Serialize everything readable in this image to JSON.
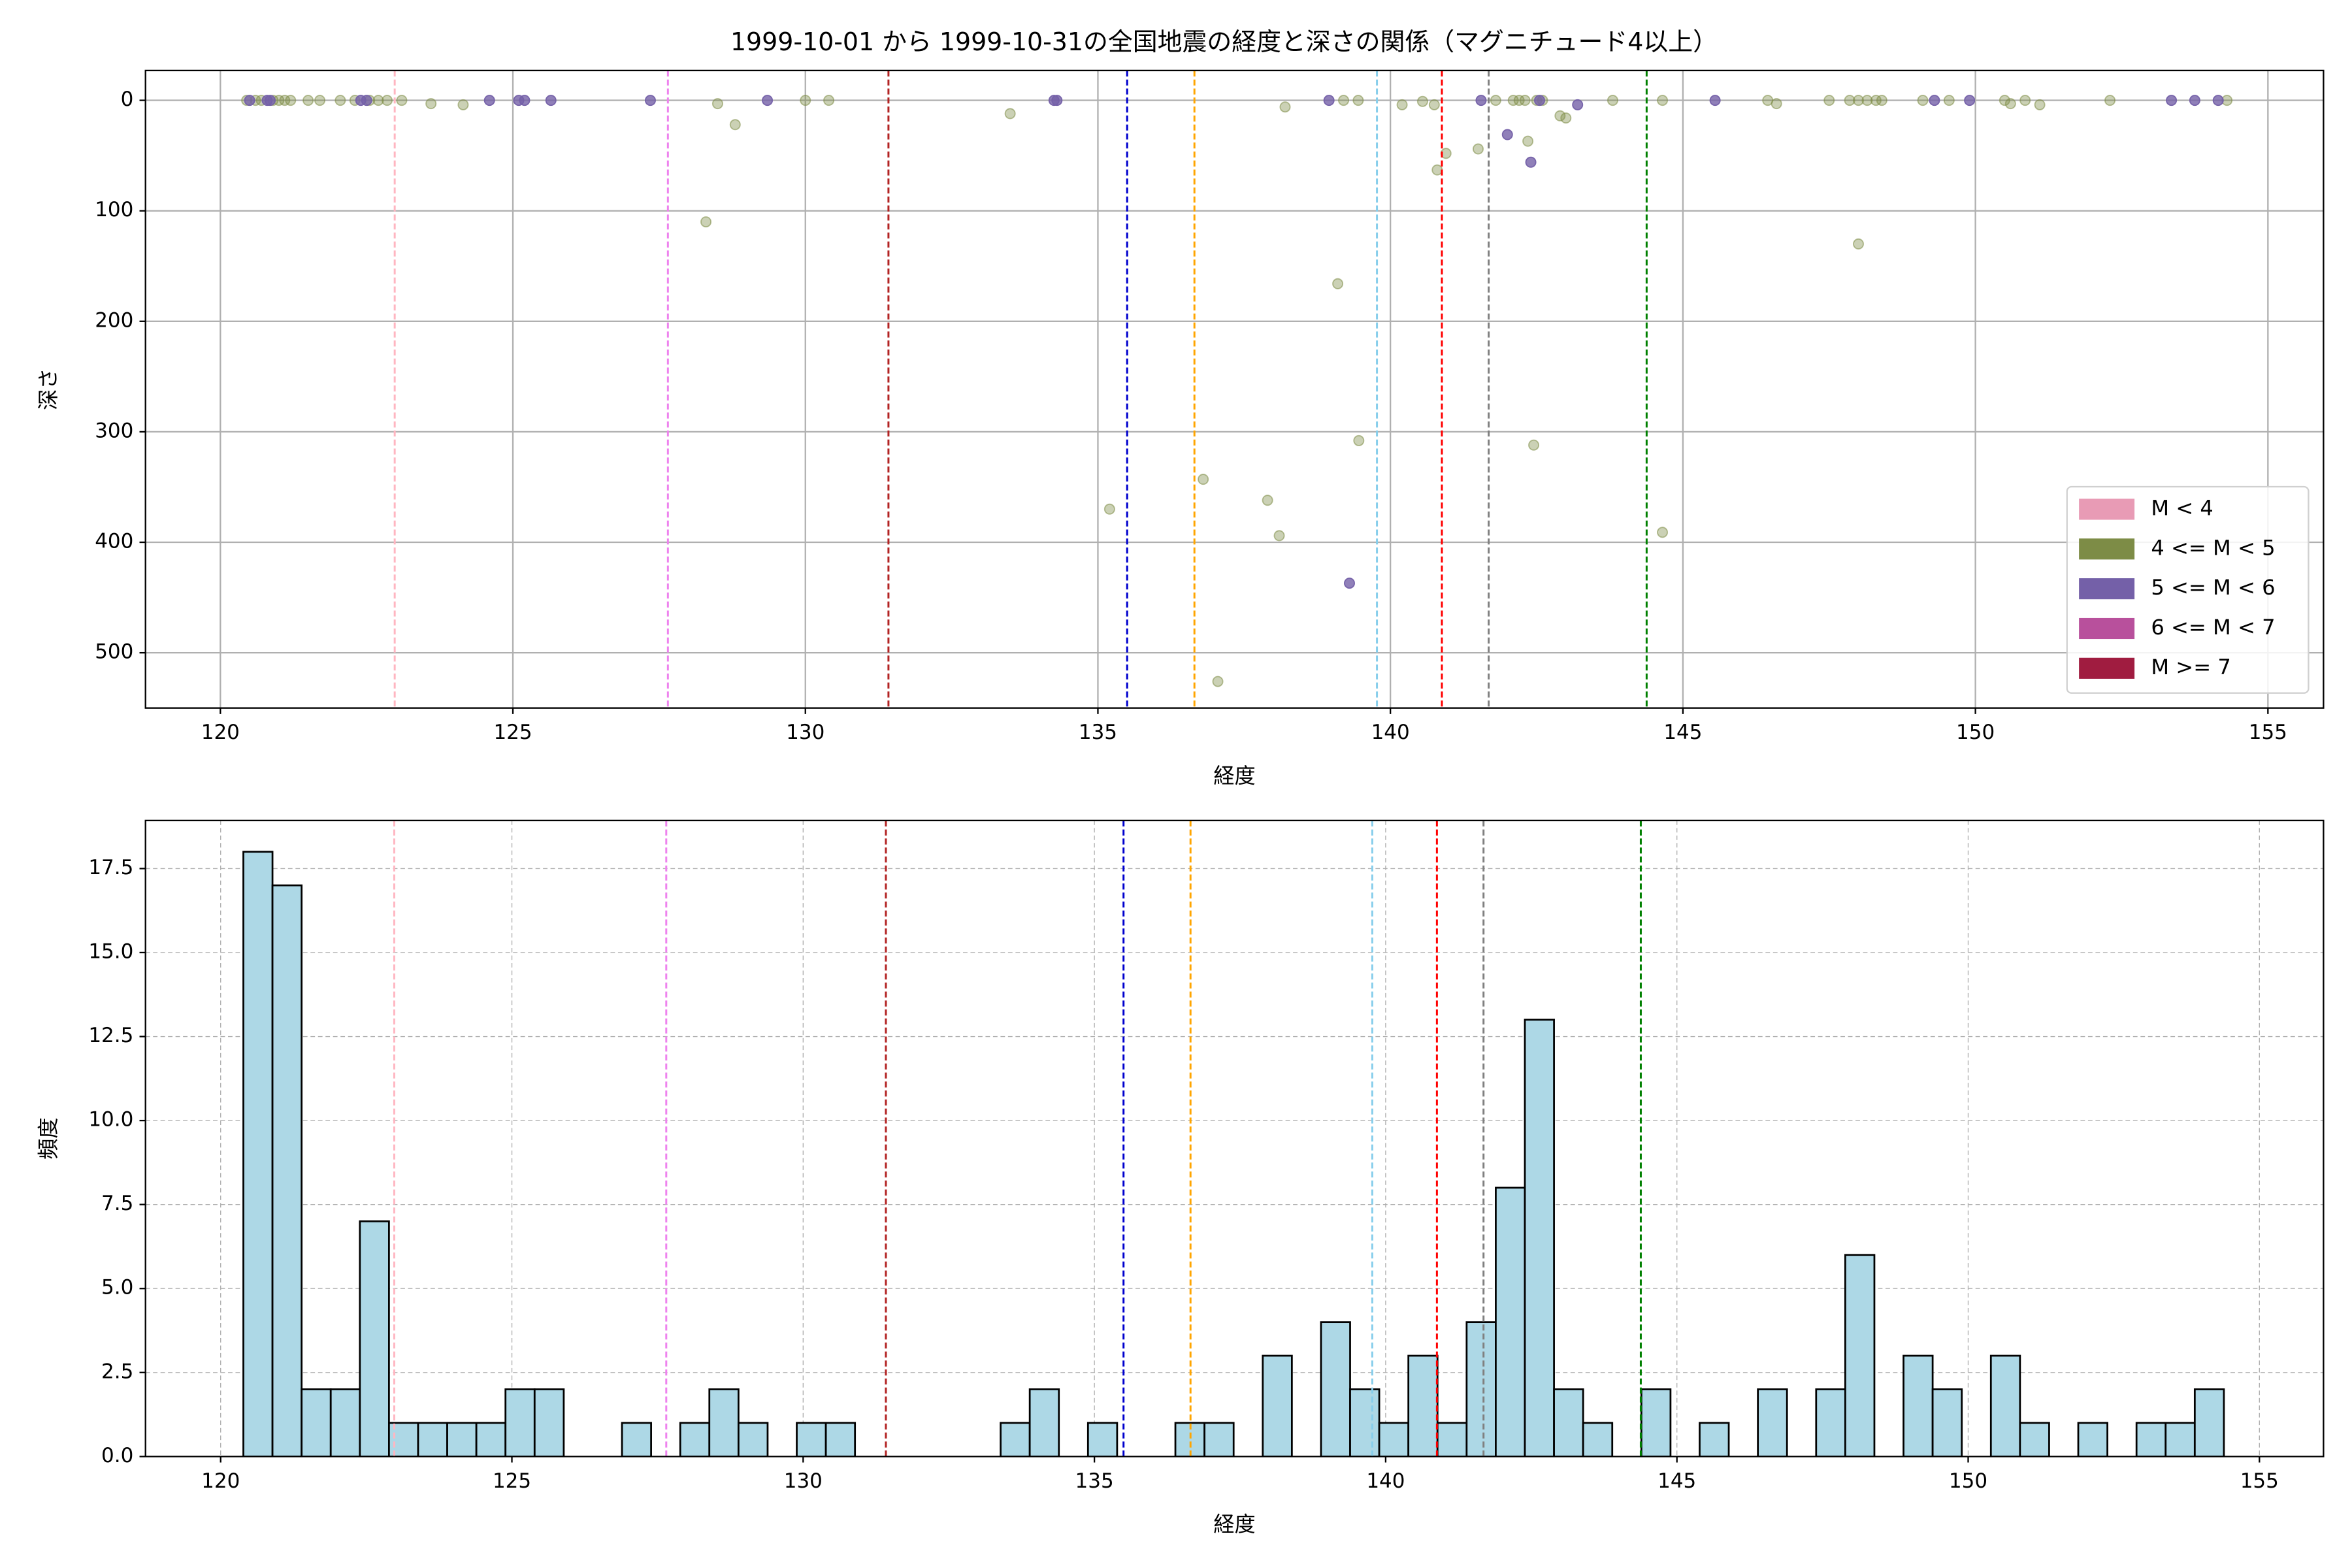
{
  "chart_data": [
    {
      "type": "scatter",
      "title": "1999-10-01 から 1999-10-31の全国地震の経度と深さの関係（マグニチュード4以上）",
      "x_label": "経度",
      "y_label": "深さ",
      "xlim": [
        118.72,
        155.95
      ],
      "xticks": [
        120,
        125,
        130,
        135,
        140,
        145,
        150,
        155
      ],
      "ylim": [
        550,
        -27
      ],
      "yticks": [
        0,
        100,
        200,
        300,
        400,
        500
      ],
      "grid": true,
      "grid_style": "solid",
      "legend": "lower right",
      "vlines": [
        {
          "x": 122.98,
          "color": "#ffb6c1"
        },
        {
          "x": 127.65,
          "color": "#ee82ee"
        },
        {
          "x": 131.42,
          "color": "#b22222"
        },
        {
          "x": 135.5,
          "color": "#0000cd"
        },
        {
          "x": 136.65,
          "color": "#ffa500"
        },
        {
          "x": 139.77,
          "color": "#87ceeb"
        },
        {
          "x": 140.88,
          "color": "#ff0000"
        },
        {
          "x": 141.68,
          "color": "#808080"
        },
        {
          "x": 144.38,
          "color": "#008000"
        }
      ],
      "series": [
        {
          "name": "M < 4",
          "color": "#e89bb5",
          "alpha": 0.8,
          "x": [],
          "values": []
        },
        {
          "name": "4 <= M < 5",
          "color": "#7d8c46",
          "alpha": 0.4,
          "x": [
            120.45,
            120.6,
            120.7,
            120.9,
            121.0,
            121.1,
            121.2,
            121.5,
            121.7,
            122.05,
            122.3,
            122.55,
            122.7,
            122.85,
            123.1,
            123.6,
            124.15,
            128.5,
            128.8,
            128.3,
            130.0,
            130.4,
            133.5,
            135.2,
            136.8,
            137.05,
            137.9,
            138.1,
            138.2,
            139.1,
            139.2,
            139.45,
            139.46,
            140.2,
            140.55,
            140.75,
            140.8,
            140.95,
            141.5,
            141.8,
            142.1,
            142.2,
            142.3,
            142.35,
            142.45,
            142.5,
            142.6,
            142.9,
            143.0,
            143.8,
            144.65,
            144.65,
            146.45,
            146.6,
            147.5,
            147.85,
            148.0,
            148.0,
            148.15,
            148.3,
            148.4,
            149.1,
            149.55,
            150.5,
            150.6,
            150.85,
            151.1,
            152.3,
            154.3
          ],
          "values": [
            0,
            0,
            0,
            0,
            0,
            0,
            0,
            0,
            0,
            0,
            0,
            0,
            0,
            0,
            0,
            3,
            4,
            3,
            22,
            110,
            0,
            0,
            12,
            370,
            343,
            526,
            362,
            394,
            6,
            166,
            0,
            0,
            308,
            4,
            1,
            4,
            63,
            48,
            44,
            0,
            0,
            0,
            0,
            37,
            312,
            0,
            0,
            14,
            16,
            0,
            0,
            391,
            0,
            3,
            0,
            0,
            0,
            130,
            0,
            0,
            0,
            0,
            0,
            0,
            3,
            0,
            4,
            0,
            0
          ]
        },
        {
          "name": "5 <= M < 6",
          "color": "#7460a8",
          "alpha": 0.8,
          "x": [
            120.5,
            120.8,
            120.85,
            122.4,
            122.5,
            124.6,
            125.1,
            125.2,
            125.65,
            127.35,
            129.35,
            134.25,
            134.3,
            138.95,
            139.3,
            141.55,
            142.0,
            142.4,
            142.55,
            143.2,
            145.55,
            149.3,
            149.9,
            153.35,
            153.75,
            154.15
          ],
          "values": [
            0,
            0,
            0,
            0,
            0,
            0,
            0,
            0,
            0,
            0,
            0,
            0,
            0,
            0,
            437,
            0,
            31,
            56,
            0,
            4,
            0,
            0,
            0,
            0,
            0,
            0
          ]
        },
        {
          "name": "6 <= M < 7",
          "color": "#b8509c",
          "alpha": 0.8,
          "x": [],
          "values": []
        },
        {
          "name": "M >= 7",
          "color": "#a01c40",
          "alpha": 0.8,
          "x": [],
          "values": []
        }
      ]
    },
    {
      "type": "histogram",
      "x_label": "経度",
      "y_label": "頻度",
      "xlim": [
        118.71,
        156.1
      ],
      "xticks": [
        120,
        125,
        130,
        135,
        140,
        145,
        150,
        155
      ],
      "ylim": [
        0,
        18.93
      ],
      "yticks": [
        {
          "value": 0,
          "label": "0.0"
        },
        2.5,
        {
          "value": 5,
          "label": "5.0"
        },
        7.5,
        {
          "value": 10,
          "label": "10.0"
        },
        12.5,
        {
          "value": 15,
          "label": "15.0"
        },
        17.5
      ],
      "grid": true,
      "grid_style": "dashed",
      "color": "#add8e6",
      "edge_color": "#000000",
      "vlines": [
        {
          "x": 122.98,
          "color": "#ffb6c1"
        },
        {
          "x": 127.65,
          "color": "#ee82ee"
        },
        {
          "x": 131.42,
          "color": "#b22222"
        },
        {
          "x": 135.5,
          "color": "#0000cd"
        },
        {
          "x": 136.65,
          "color": "#ffa500"
        },
        {
          "x": 139.77,
          "color": "#87ceeb"
        },
        {
          "x": 140.88,
          "color": "#ff0000"
        },
        {
          "x": 141.68,
          "color": "#808080"
        },
        {
          "x": 144.38,
          "color": "#008000"
        }
      ],
      "bins": [
        120.39,
        120.89,
        121.39,
        121.89,
        122.39,
        122.89,
        123.39,
        123.89,
        124.39,
        124.89,
        125.39,
        125.89,
        126.39,
        126.89,
        127.39,
        127.89,
        128.39,
        128.89,
        129.39,
        129.89,
        130.39,
        130.89,
        131.39,
        131.89,
        132.39,
        132.89,
        133.39,
        133.89,
        134.39,
        134.89,
        135.39,
        135.89,
        136.39,
        136.89,
        137.39,
        137.89,
        138.39,
        138.89,
        139.39,
        139.89,
        140.39,
        140.89,
        141.39,
        141.89,
        142.39,
        142.89,
        143.39,
        143.89,
        144.39,
        144.89,
        145.39,
        145.89,
        146.39,
        146.89,
        147.39,
        147.89,
        148.39,
        148.89,
        149.39,
        149.89,
        150.39,
        150.89,
        151.39,
        151.89,
        152.39,
        152.89,
        153.39,
        153.89,
        154.39
      ],
      "values": [
        18,
        17,
        2,
        2,
        7,
        1,
        1,
        1,
        1,
        2,
        2,
        0,
        0,
        1,
        0,
        1,
        2,
        1,
        0,
        1,
        1,
        0,
        0,
        0,
        0,
        0,
        1,
        2,
        0,
        1,
        0,
        0,
        1,
        1,
        0,
        3,
        0,
        4,
        2,
        1,
        3,
        1,
        4,
        8,
        13,
        2,
        1,
        0,
        2,
        0,
        1,
        0,
        2,
        0,
        2,
        6,
        0,
        3,
        2,
        0,
        3,
        1,
        0,
        1,
        0,
        1,
        1,
        2
      ]
    }
  ]
}
